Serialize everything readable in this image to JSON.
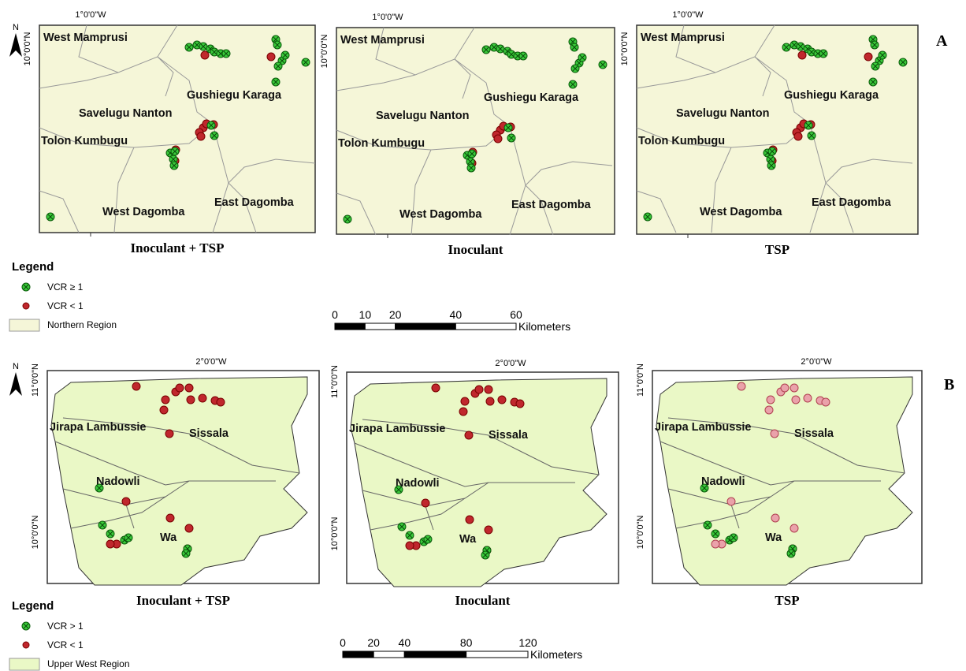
{
  "panels": [
    {
      "label": "A",
      "north": "N",
      "maps": [
        {
          "title": "Inoculant + TSP",
          "lon": "1°0'0\"W",
          "lat": [
            "10°0'0\"N"
          ],
          "districts": [
            "West Mamprusi",
            "Gushiegu Karaga",
            "Savelugu Nanton",
            "Tolon Kumbugu",
            "West Dagomba",
            "East Dagomba"
          ]
        },
        {
          "title": "Inoculant",
          "lon": "1°0'0\"W",
          "lat": [
            "10°0'0\"N"
          ],
          "districts": [
            "West Mamprusi",
            "Gushiegu Karaga",
            "Savelugu Nanton",
            "Tolon Kumbugu",
            "West Dagomba",
            "East Dagomba"
          ]
        },
        {
          "title": "TSP",
          "lon": "1°0'0\"W",
          "lat": [
            "10°0'0\"N"
          ],
          "districts": [
            "West Mamprusi",
            "Gushiegu Karaga",
            "Savelugu Nanton",
            "Tolon Kumbugu",
            "West Dagomba",
            "East Dagomba"
          ]
        }
      ],
      "legend": {
        "title": "Legend",
        "items": [
          "VCR ≥ 1",
          "VCR < 1",
          "Northern Region"
        ]
      },
      "scale": {
        "ticks": [
          0,
          10,
          20,
          40,
          60
        ],
        "unit": "Kilometers"
      }
    },
    {
      "label": "B",
      "north": "N",
      "maps": [
        {
          "title": "Inoculant + TSP",
          "lon": "2°0'0\"W",
          "lat": [
            "11°0'0\"N",
            "10°0'0\"N"
          ],
          "districts": [
            "Jirapa Lambussie",
            "Sissala",
            "Nadowli",
            "Wa"
          ]
        },
        {
          "title": "Inoculant",
          "lon": "2°0'0\"W",
          "lat": [
            "11°0'0\"N",
            "10°0'0\"N"
          ],
          "districts": [
            "Jirapa Lambussie",
            "Sissala",
            "Nadowli",
            "Wa"
          ]
        },
        {
          "title": "TSP",
          "lon": "2°0'0\"W",
          "lat": [
            "11°0'0\"N",
            "10°0'0\"N"
          ],
          "districts": [
            "Jirapa Lambussie",
            "Sissala",
            "Nadowli",
            "Wa"
          ]
        }
      ],
      "legend": {
        "title": "Legend",
        "items": [
          "VCR > 1",
          "VCR < 1",
          "Upper West Region"
        ]
      },
      "scale": {
        "ticks": [
          0,
          20,
          40,
          80,
          120
        ],
        "unit": "Kilometers"
      }
    }
  ]
}
